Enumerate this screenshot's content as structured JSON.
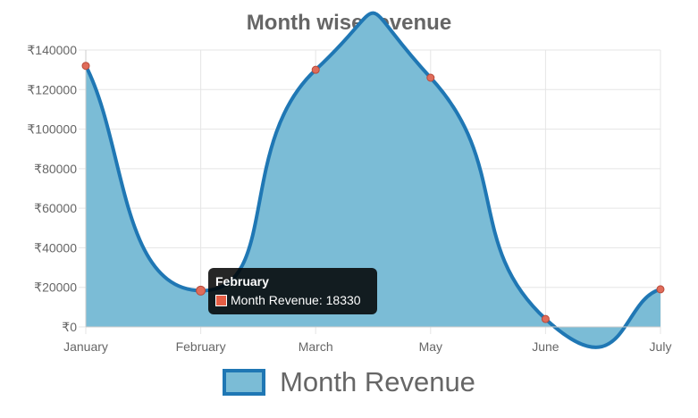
{
  "chart_data": {
    "type": "area",
    "title": "Month wise revenue",
    "categories": [
      "January",
      "February",
      "March",
      "May",
      "June",
      "July"
    ],
    "series": [
      {
        "name": "Month Revenue",
        "values": [
          132000,
          18330,
          130000,
          126000,
          4000,
          19000
        ]
      }
    ],
    "ylim": [
      0,
      140000
    ],
    "yticks": [
      0,
      20000,
      40000,
      60000,
      80000,
      100000,
      120000,
      140000
    ],
    "ytick_prefix": "₹",
    "grid": true,
    "legend_position": "bottom",
    "colors": {
      "line": "#1f77b4",
      "fill": "#7bbcd6",
      "point_fill": "#e06c5a",
      "point_stroke": "#b84a3a",
      "grid": "#e5e5e5",
      "text": "#666666"
    },
    "tooltip": {
      "title": "February",
      "label": "Month Revenue: 18330",
      "swatch_color": "#e55e45"
    }
  }
}
